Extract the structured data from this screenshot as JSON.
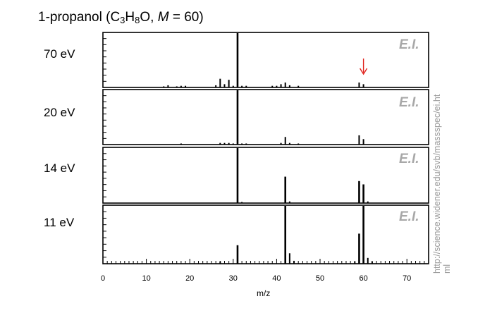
{
  "title": {
    "prefix": "1-propanol (C",
    "sub3": "3",
    "h": "H",
    "sub8": "8",
    "o": "O, ",
    "m": "M",
    "rest": " = 60)"
  },
  "source_url_line1": "http://science.widener.edu/svb/massspec/ei.ht",
  "source_url_line2": "ml",
  "chart_data": {
    "type": "bar",
    "xlabel": "m/z",
    "xlim": [
      0,
      75
    ],
    "x_ticks": [
      0,
      10,
      20,
      30,
      40,
      50,
      60,
      70
    ],
    "ylim": [
      0,
      100
    ],
    "annotation": {
      "type": "arrow",
      "x": 60,
      "panel": "70 eV",
      "color": "#e0201a"
    },
    "panels": [
      {
        "name": "70 eV",
        "tag": "E.I.",
        "peaks": [
          {
            "x": 14,
            "y": 2
          },
          {
            "x": 15,
            "y": 4
          },
          {
            "x": 17,
            "y": 2
          },
          {
            "x": 18,
            "y": 3
          },
          {
            "x": 19,
            "y": 3
          },
          {
            "x": 26,
            "y": 4
          },
          {
            "x": 27,
            "y": 16
          },
          {
            "x": 28,
            "y": 6
          },
          {
            "x": 29,
            "y": 14
          },
          {
            "x": 30,
            "y": 3
          },
          {
            "x": 31,
            "y": 100
          },
          {
            "x": 32,
            "y": 3
          },
          {
            "x": 33,
            "y": 3
          },
          {
            "x": 39,
            "y": 3
          },
          {
            "x": 40,
            "y": 3
          },
          {
            "x": 41,
            "y": 6
          },
          {
            "x": 42,
            "y": 9
          },
          {
            "x": 43,
            "y": 4
          },
          {
            "x": 45,
            "y": 3
          },
          {
            "x": 59,
            "y": 9
          },
          {
            "x": 60,
            "y": 6
          }
        ]
      },
      {
        "name": "20 eV",
        "tag": "E.I.",
        "peaks": [
          {
            "x": 18,
            "y": 2
          },
          {
            "x": 27,
            "y": 3
          },
          {
            "x": 28,
            "y": 3
          },
          {
            "x": 29,
            "y": 3
          },
          {
            "x": 30,
            "y": 2
          },
          {
            "x": 31,
            "y": 100
          },
          {
            "x": 32,
            "y": 2
          },
          {
            "x": 33,
            "y": 2
          },
          {
            "x": 41,
            "y": 3
          },
          {
            "x": 42,
            "y": 14
          },
          {
            "x": 43,
            "y": 3
          },
          {
            "x": 45,
            "y": 2
          },
          {
            "x": 59,
            "y": 17
          },
          {
            "x": 60,
            "y": 10
          }
        ]
      },
      {
        "name": "14 eV",
        "tag": "E.I.",
        "peaks": [
          {
            "x": 31,
            "y": 100
          },
          {
            "x": 32,
            "y": 2
          },
          {
            "x": 42,
            "y": 48
          },
          {
            "x": 43,
            "y": 3
          },
          {
            "x": 59,
            "y": 40
          },
          {
            "x": 60,
            "y": 34
          },
          {
            "x": 61,
            "y": 3
          }
        ]
      },
      {
        "name": "11 eV",
        "tag": "E.I.",
        "peaks": [
          {
            "x": 27,
            "y": 4
          },
          {
            "x": 31,
            "y": 32
          },
          {
            "x": 42,
            "y": 100
          },
          {
            "x": 43,
            "y": 18
          },
          {
            "x": 44,
            "y": 5
          },
          {
            "x": 58,
            "y": 4
          },
          {
            "x": 59,
            "y": 52
          },
          {
            "x": 60,
            "y": 100
          },
          {
            "x": 61,
            "y": 10
          },
          {
            "x": 62,
            "y": 4
          }
        ]
      }
    ]
  }
}
